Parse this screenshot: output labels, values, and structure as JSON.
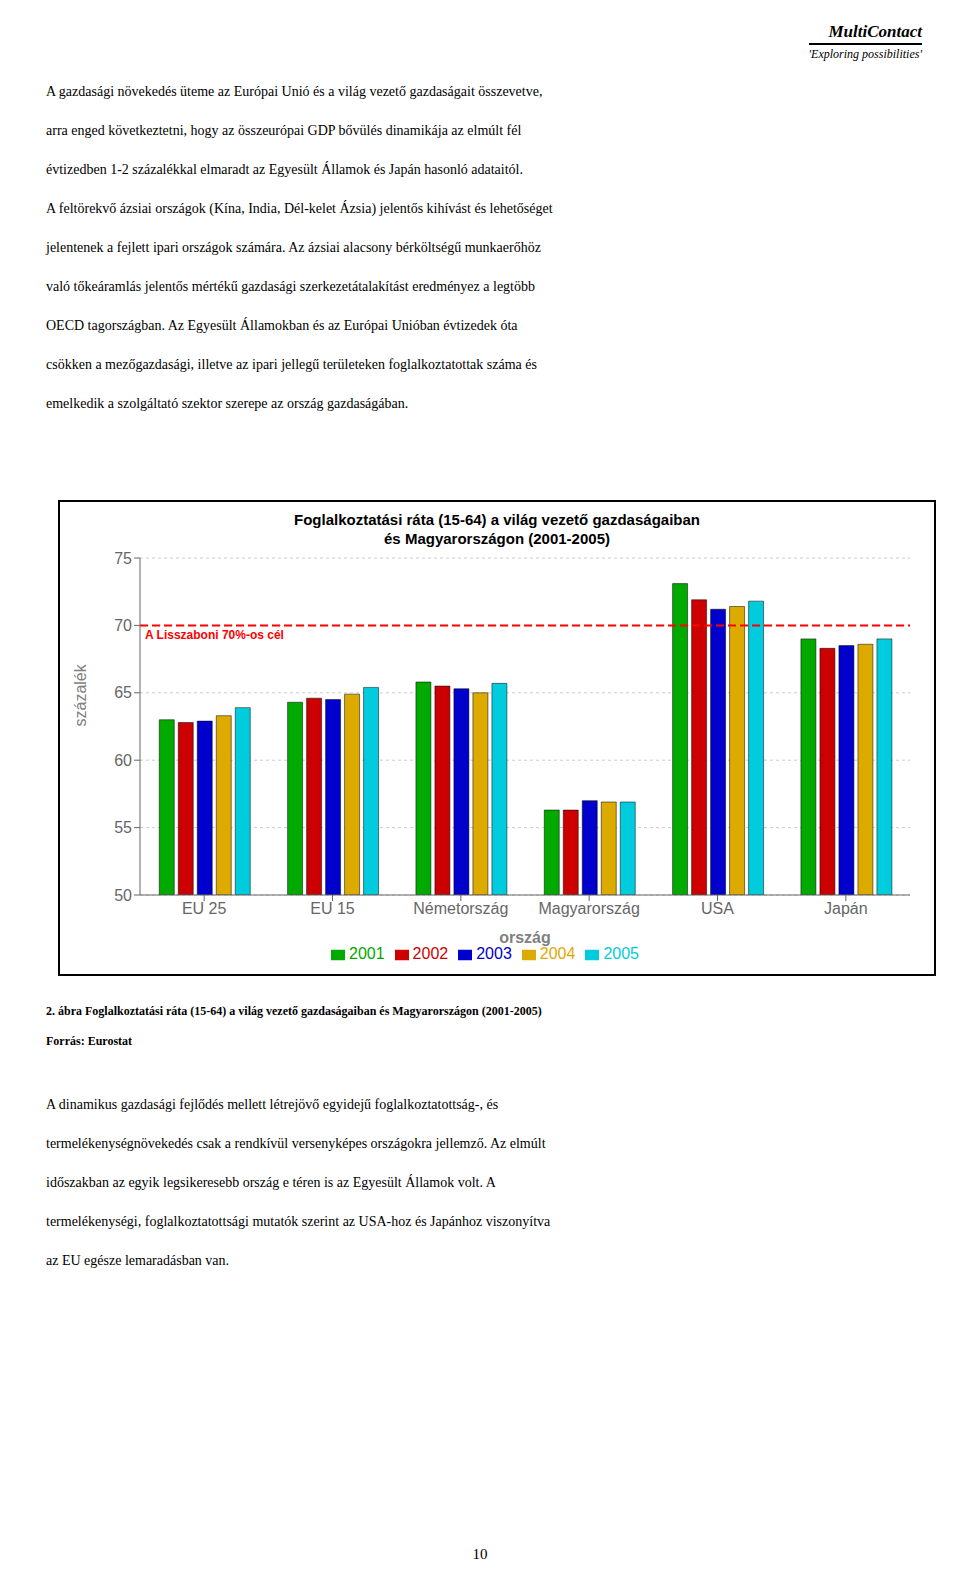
{
  "header": "MultiContact",
  "header_sub": "'Exploring possibilities'",
  "paragraphs_before": [
    "A gazdasági növekedés üteme az Európai Unió és a világ vezető gazdaságait összevetve,",
    "arra enged következtetni, hogy az összeurópai GDP bővülés dinamikája az elmúlt fél",
    "évtizedben 1-2 százalékkal elmaradt az Egyesült Államok és Japán hasonló adataitól.",
    "A feltörekvő ázsiai országok (Kína, India, Dél-kelet Ázsia) jelentős kihívást és lehetőséget",
    "jelentenek a fejlett ipari országok számára. Az ázsiai alacsony bérköltségű munkaerőhöz",
    "való tőkeáramlás jelentős mértékű gazdasági szerkezetátalakítást eredményez a legtöbb",
    "OECD tagországban. Az Egyesült Államokban és az Európai Unióban évtizedek óta",
    "csökken a mezőgazdasági, illetve az ipari jellegű területeken foglalkoztatottak száma és",
    "emelkedik a szolgáltató szektor szerepe az ország gazdaságában."
  ],
  "caption": [
    "2. ábra Foglalkoztatási ráta (15-64) a világ vezető gazdaságaiban és Magyarországon (2001-2005)",
    "Forrás: Eurostat"
  ],
  "paragraphs_after": [
    "A dinamikus gazdasági fejlődés mellett létrejövő egyidejű foglalkoztatottság-, és",
    "termelékenységnövekedés csak a rendkívül versenyképes országokra jellemző. Az elmúlt",
    "időszakban az egyik legsikeresebb ország e téren is az Egyesült Államok volt. A",
    "termelékenységi, foglalkoztatottsági mutatók szerint az USA-hoz és Japánhoz viszonyítva",
    "az EU egésze lemaradásban van."
  ],
  "page_number": "10",
  "chart_data": {
    "type": "bar",
    "title": "Foglalkoztatási ráta (15-64) a világ vezető gazdaságaiban",
    "subtitle": "és Magyarországon (2001-2005)",
    "xlabel": "ország",
    "ylabel": "százalék",
    "categories": [
      "EU 25",
      "EU 15",
      "Németország",
      "Magyarország",
      "USA",
      "Japán"
    ],
    "series": [
      {
        "name": "2001",
        "color": "#00AA00",
        "values": [
          63.0,
          64.3,
          65.8,
          56.3,
          73.1,
          69.0
        ]
      },
      {
        "name": "2002",
        "color": "#CC0000",
        "values": [
          62.8,
          64.6,
          65.5,
          56.3,
          71.9,
          68.3
        ]
      },
      {
        "name": "2003",
        "color": "#0000CC",
        "values": [
          62.9,
          64.5,
          65.3,
          57.0,
          71.2,
          68.5
        ]
      },
      {
        "name": "2004",
        "color": "#DDAA00",
        "values": [
          63.3,
          64.9,
          65.0,
          56.9,
          71.4,
          68.6
        ]
      },
      {
        "name": "2005",
        "color": "#00CCDD",
        "values": [
          63.9,
          65.4,
          65.7,
          56.9,
          71.8,
          69.0
        ]
      }
    ],
    "ylim": [
      50,
      75
    ],
    "yticks": [
      50,
      55,
      60,
      65,
      70,
      75
    ],
    "grid": true,
    "legend": "bottom",
    "annotations": [
      {
        "type": "hline",
        "value": 70.0,
        "label": "A Lisszaboni 70%-os cél",
        "color": "red",
        "line_style": "dashed"
      }
    ]
  }
}
